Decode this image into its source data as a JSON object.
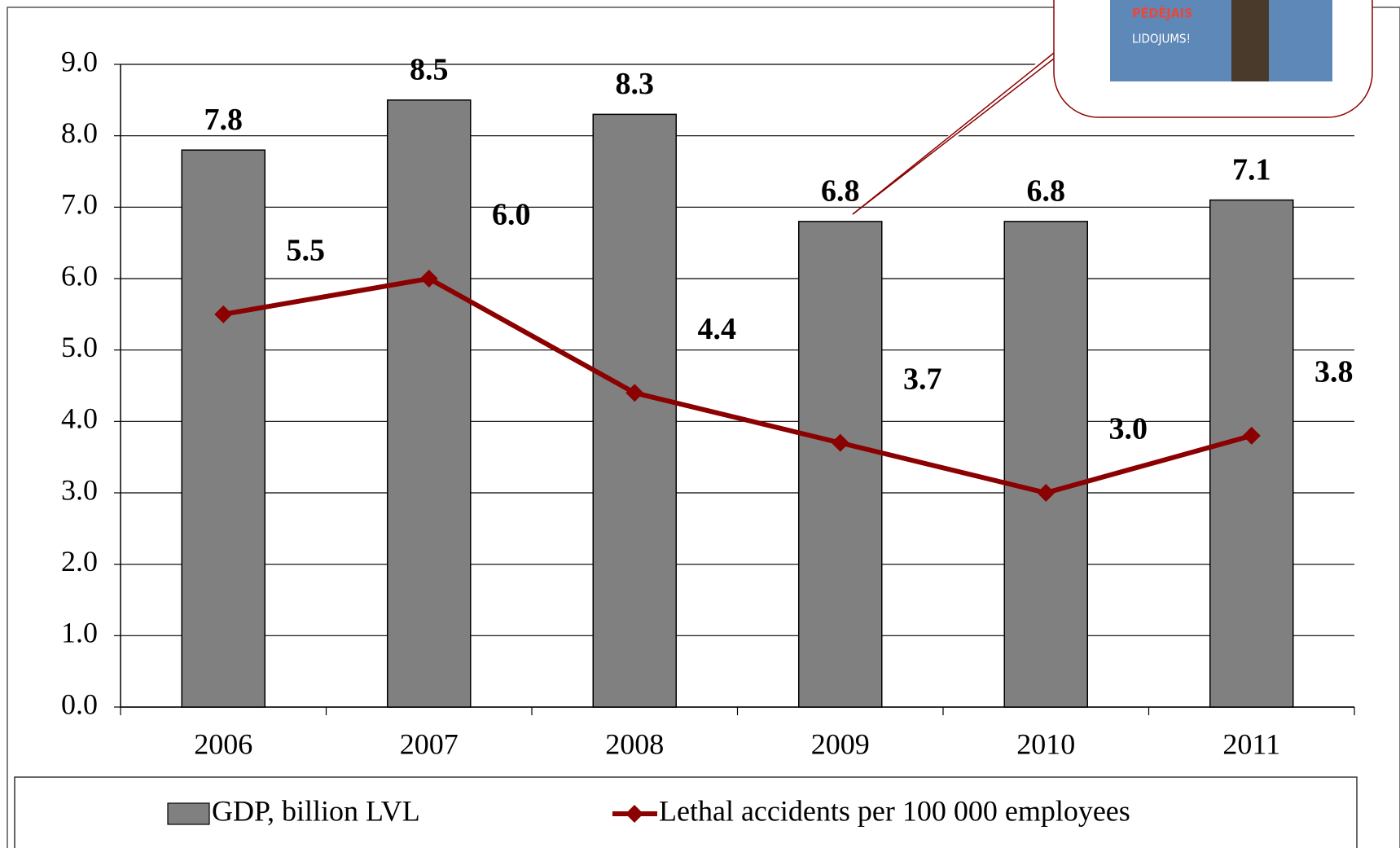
{
  "chart_data": {
    "type": "bar",
    "categories": [
      "2006",
      "2007",
      "2008",
      "2009",
      "2010",
      "2011"
    ],
    "series": [
      {
        "name": "GDP, billion LVL",
        "type": "bar",
        "color": "#808080",
        "values": [
          7.8,
          8.5,
          8.3,
          6.8,
          6.8,
          7.1
        ],
        "value_labels": [
          "7.8",
          "8.5",
          "8.3",
          "6.8",
          "6.8",
          "7.1"
        ]
      },
      {
        "name": "Lethal accidents per 100 000 employees",
        "type": "line",
        "color": "#8b0000",
        "values": [
          5.5,
          6.0,
          4.4,
          3.7,
          3.0,
          3.8
        ],
        "value_labels": [
          "5.5",
          "6.0",
          "4.4",
          "3.7",
          "3.0",
          "3.8"
        ]
      }
    ],
    "ylim": [
      0,
      9
    ],
    "yticks": [
      {
        "value": 0,
        "label": "0.0"
      },
      {
        "value": 1,
        "label": "1.0"
      },
      {
        "value": 2,
        "label": "2.0"
      },
      {
        "value": 3,
        "label": "3.0"
      },
      {
        "value": 4,
        "label": "4.0"
      },
      {
        "value": 5,
        "label": "5.0"
      },
      {
        "value": 6,
        "label": "6.0"
      },
      {
        "value": 7,
        "label": "7.0"
      },
      {
        "value": 8,
        "label": "8.0"
      },
      {
        "value": 9,
        "label": "9.0"
      }
    ],
    "grid": true,
    "legend": "bottom",
    "annotations": [
      "PĒDĒJAIS",
      "LIDOJUMS!"
    ]
  }
}
